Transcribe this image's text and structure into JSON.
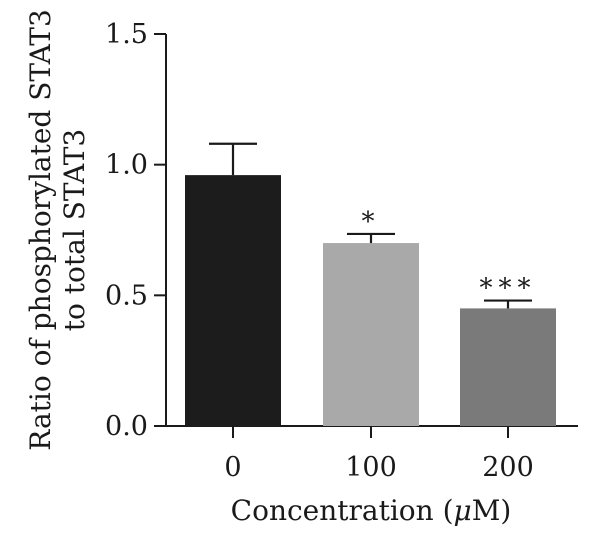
{
  "chart_data": {
    "type": "bar",
    "categories": [
      "0",
      "100",
      "200"
    ],
    "values": [
      0.96,
      0.7,
      0.45
    ],
    "errors": [
      0.12,
      0.035,
      0.03
    ],
    "significance": [
      "",
      "*",
      "***"
    ],
    "colors": [
      "#1c1c1c",
      "#a9a9a9",
      "#7a7a7a"
    ],
    "ylim": [
      0,
      1.5
    ],
    "yticks": [
      "0.0",
      "0.5",
      "1.0",
      "1.5"
    ],
    "ylabel_line1": "Ratio of phosphorylated STAT3",
    "ylabel_line2": "to total STAT3",
    "xlabel_prefix": "Concentration (",
    "xlabel_unit_mu": "μ",
    "xlabel_suffix": "M)",
    "grid": false,
    "legend": "none"
  }
}
